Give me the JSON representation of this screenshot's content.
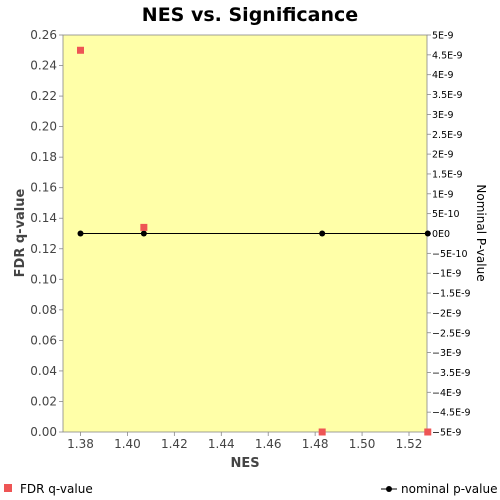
{
  "chart_data": {
    "type": "scatter",
    "title": "NES vs. Significance",
    "xlabel": "NES",
    "ylabel": "FDR q-value",
    "ylabel_right": "Nominal P-value",
    "xlim": [
      1.37,
      1.53
    ],
    "ylim": [
      0,
      0.26
    ],
    "ylim_right": [
      -5e-09,
      5e-09
    ],
    "x_ticks": [
      "1.38",
      "1.40",
      "1.42",
      "1.44",
      "1.46",
      "1.48",
      "1.50",
      "1.52"
    ],
    "x_tick_values": [
      1.38,
      1.4,
      1.42,
      1.44,
      1.46,
      1.48,
      1.5,
      1.52
    ],
    "y_ticks": [
      "0.00",
      "0.02",
      "0.04",
      "0.06",
      "0.08",
      "0.10",
      "0.12",
      "0.14",
      "0.16",
      "0.18",
      "0.20",
      "0.22",
      "0.24",
      "0.26"
    ],
    "y_tick_values": [
      0,
      0.02,
      0.04,
      0.06,
      0.08,
      0.1,
      0.12,
      0.14,
      0.16,
      0.18,
      0.2,
      0.22,
      0.24,
      0.26
    ],
    "y_right_ticks": [
      "5E-9",
      "4.5E-9",
      "4E-9",
      "3.5E-9",
      "3E-9",
      "2.5E-9",
      "2E-9",
      "1.5E-9",
      "1E-9",
      "5E-10",
      "0E0",
      "−5E-10",
      "−1E-9",
      "−1.5E-9",
      "−2E-9",
      "−2.5E-9",
      "−3E-9",
      "−3.5E-9",
      "−4E-9",
      "−4.5E-9",
      "−5E-9"
    ],
    "y_right_tick_values": [
      5e-09,
      4.5e-09,
      4e-09,
      3.5e-09,
      3e-09,
      2.5e-09,
      2e-09,
      1.5e-09,
      1e-09,
      5e-10,
      0,
      -5e-10,
      -1e-09,
      -1.5e-09,
      -2e-09,
      -2.5e-09,
      -3e-09,
      -3.5e-09,
      -4e-09,
      -4.5e-09,
      -5e-09
    ],
    "grid": false,
    "legend_placement": "bottom",
    "series": [
      {
        "name": "FDR q-value",
        "axis": "left",
        "marker": "square",
        "color": "#ee5555",
        "x": [
          1.38,
          1.407,
          1.483,
          1.528
        ],
        "y": [
          0.25,
          0.134,
          0.0,
          0.0
        ]
      },
      {
        "name": "nominal p-value",
        "axis": "right",
        "marker": "circle-line",
        "color": "#000000",
        "x": [
          1.38,
          1.407,
          1.483,
          1.528
        ],
        "y": [
          0,
          0,
          0,
          0
        ]
      }
    ],
    "colors": {
      "plot_background": "#ffffa8",
      "page_background": "#ffffff"
    }
  }
}
